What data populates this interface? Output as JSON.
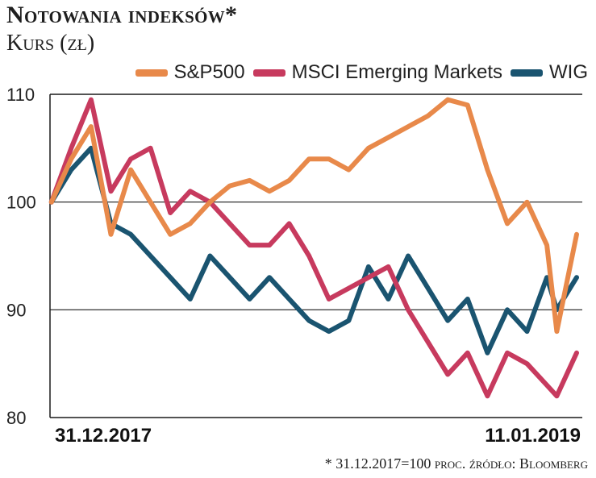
{
  "title": "Notowania indeksów*",
  "subtitle": "Kurs (zł)",
  "footnote": "* 31.12.2017=100 proc. źródło: Bloomberg",
  "chart_data": {
    "type": "line",
    "title": "Notowania indeksów*",
    "ylabel": "Kurs (zł)",
    "ylim": [
      80,
      110
    ],
    "yticks": [
      80,
      90,
      100,
      110
    ],
    "xlim": [
      "2017-12-31",
      "2019-01-11"
    ],
    "x_tick_labels": [
      "31.12.2017",
      "11.01.2019"
    ],
    "grid": "horizontal",
    "legend_position": "top-right",
    "x": [
      "2018-01-01",
      "2018-01-15",
      "2018-01-29",
      "2018-02-12",
      "2018-02-26",
      "2018-03-12",
      "2018-03-26",
      "2018-04-09",
      "2018-04-23",
      "2018-05-07",
      "2018-05-21",
      "2018-06-04",
      "2018-06-18",
      "2018-07-02",
      "2018-07-16",
      "2018-07-30",
      "2018-08-13",
      "2018-08-27",
      "2018-09-10",
      "2018-09-24",
      "2018-10-08",
      "2018-10-22",
      "2018-11-05",
      "2018-11-19",
      "2018-12-03",
      "2018-12-17",
      "2018-12-24",
      "2019-01-07"
    ],
    "series": [
      {
        "name": "S&P500",
        "color": "#e8894a",
        "values": [
          100,
          104,
          107,
          97,
          103,
          100,
          97,
          98,
          100,
          101.5,
          102,
          101,
          102,
          104,
          104,
          103,
          105,
          106,
          107,
          108,
          109.5,
          109,
          103,
          98,
          100,
          96,
          88,
          97
        ]
      },
      {
        "name": "MSCI Emerging Markets",
        "color": "#c73a5e",
        "values": [
          100,
          105,
          109.5,
          101,
          104,
          105,
          99,
          101,
          100,
          98,
          96,
          96,
          98,
          95,
          91,
          92,
          93,
          94,
          90,
          87,
          84,
          86,
          82,
          86,
          85,
          83,
          82,
          86
        ]
      },
      {
        "name": "WIG",
        "color": "#1a5470",
        "values": [
          100,
          103,
          105,
          98,
          97,
          95,
          93,
          91,
          95,
          93,
          91,
          93,
          91,
          89,
          88,
          89,
          94,
          91,
          95,
          92,
          89,
          91,
          86,
          90,
          88,
          93,
          90,
          93
        ]
      }
    ]
  }
}
